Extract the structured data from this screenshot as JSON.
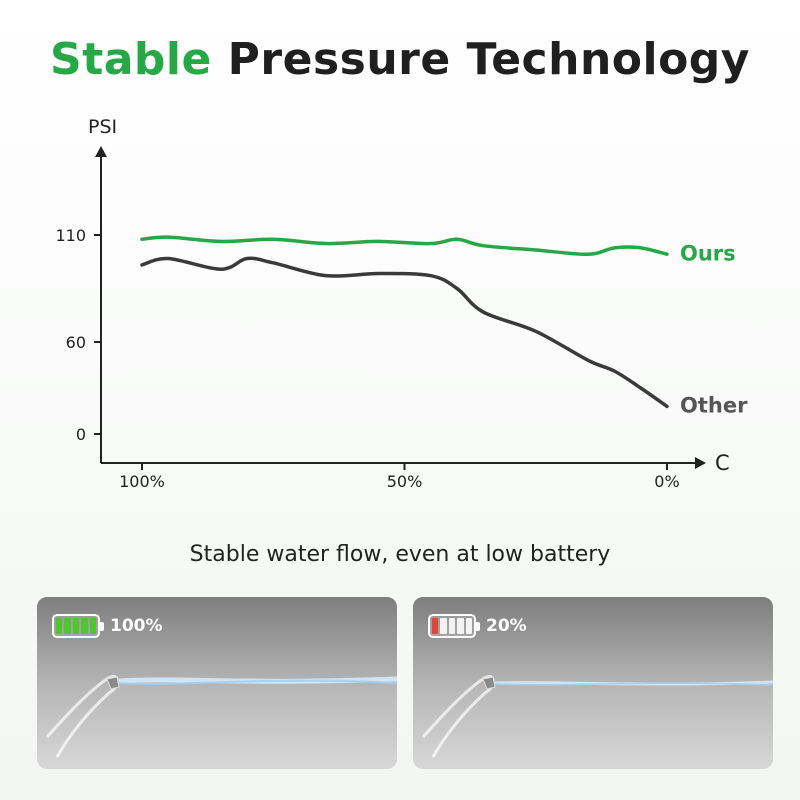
{
  "title": {
    "accent": "Stable",
    "rest": "Pressure Technology"
  },
  "colors": {
    "accent": "#27a746",
    "other": "#3a3a3a",
    "axis": "#222222",
    "battery_full": "#4fc72b",
    "battery_low": "#e2453c"
  },
  "chart_data": {
    "type": "line",
    "title": "Stable Pressure Technology",
    "ylabel": "PSI",
    "xlabel": "C",
    "x_ticks": [
      "100%",
      "50%",
      "0%"
    ],
    "y_ticks": [
      "0",
      "60",
      "110"
    ],
    "series": [
      {
        "name": "Ours",
        "color": "#27a746",
        "x": [
          100,
          95,
          85,
          75,
          65,
          55,
          45,
          40,
          35,
          25,
          15,
          10,
          5,
          0
        ],
        "y": [
          108,
          109,
          107,
          108,
          106,
          107,
          106,
          108,
          105,
          103,
          101,
          104,
          104,
          101
        ]
      },
      {
        "name": "Other",
        "color": "#3a3a3a",
        "x": [
          100,
          95,
          85,
          80,
          75,
          65,
          55,
          45,
          40,
          35,
          25,
          15,
          10,
          5,
          0
        ],
        "y": [
          96,
          99,
          94,
          99,
          97,
          91,
          92,
          91,
          85,
          74,
          65,
          48,
          41,
          30,
          18
        ]
      }
    ]
  },
  "subtitle": "Stable water flow, even at low battery",
  "panels": [
    {
      "label": "100%",
      "level": 1.0,
      "filled_cells": 5
    },
    {
      "label": "20%",
      "level": 0.2,
      "filled_cells": 1
    }
  ]
}
